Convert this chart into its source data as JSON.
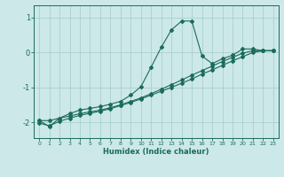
{
  "xlabel": "Humidex (Indice chaleur)",
  "bg_color": "#cce8e8",
  "grid_color": "#aad0d0",
  "line_color": "#1a6b5a",
  "xlim": [
    -0.5,
    23.5
  ],
  "ylim": [
    -2.45,
    1.35
  ],
  "yticks": [
    -2,
    -1,
    0,
    1
  ],
  "xticks": [
    0,
    1,
    2,
    3,
    4,
    5,
    6,
    7,
    8,
    9,
    10,
    11,
    12,
    13,
    14,
    15,
    16,
    17,
    18,
    19,
    20,
    21,
    22,
    23
  ],
  "curve_x": [
    0,
    1,
    2,
    3,
    4,
    5,
    6,
    7,
    8,
    9,
    10,
    11,
    12,
    13,
    14,
    15,
    16,
    17,
    18,
    19,
    20,
    21,
    22,
    23
  ],
  "curve_y": [
    -1.95,
    -2.12,
    -1.88,
    -1.75,
    -1.65,
    -1.6,
    -1.55,
    -1.48,
    -1.4,
    -1.22,
    -0.98,
    -0.42,
    0.15,
    0.65,
    0.9,
    0.9,
    -0.1,
    -0.32,
    -0.18,
    -0.08,
    0.1,
    0.1,
    0.05,
    0.05
  ],
  "line2_x": [
    0,
    1,
    2,
    3,
    4,
    5,
    6,
    7,
    8,
    9,
    10,
    11,
    12,
    13,
    14,
    15,
    16,
    17,
    18,
    19,
    20,
    21,
    22,
    23
  ],
  "line2_y": [
    -2.02,
    -2.1,
    -1.97,
    -1.88,
    -1.8,
    -1.74,
    -1.68,
    -1.61,
    -1.52,
    -1.43,
    -1.33,
    -1.22,
    -1.11,
    -1.0,
    -0.88,
    -0.76,
    -0.62,
    -0.5,
    -0.37,
    -0.24,
    -0.12,
    0.0,
    0.05,
    0.05
  ],
  "line3_x": [
    0,
    1,
    2,
    3,
    4,
    5,
    6,
    7,
    8,
    9,
    10,
    11,
    12,
    13,
    14,
    15,
    16,
    17,
    18,
    19,
    20,
    21,
    22,
    23
  ],
  "line3_y": [
    -1.95,
    -1.95,
    -1.88,
    -1.82,
    -1.75,
    -1.7,
    -1.65,
    -1.58,
    -1.5,
    -1.4,
    -1.3,
    -1.18,
    -1.05,
    -0.92,
    -0.79,
    -0.65,
    -0.52,
    -0.39,
    -0.26,
    -0.14,
    -0.02,
    0.05,
    0.05,
    0.05
  ]
}
